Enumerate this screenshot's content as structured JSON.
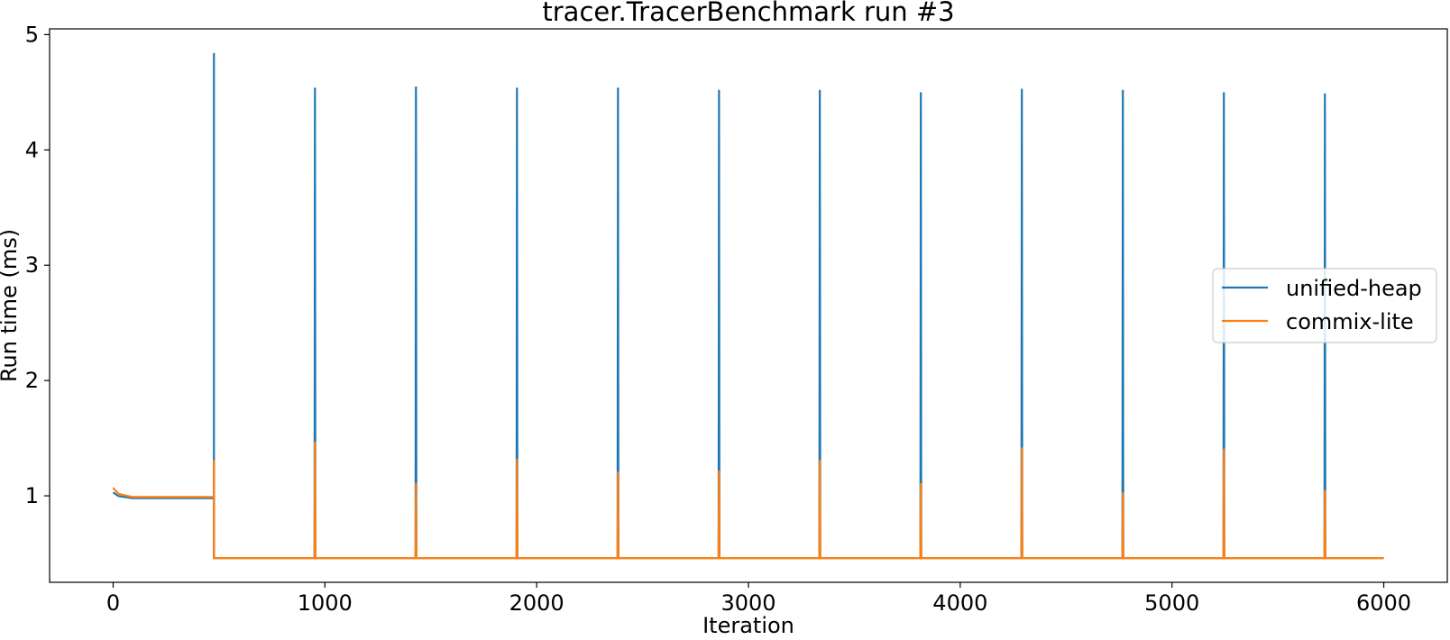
{
  "chart_data": {
    "type": "line",
    "title": "tracer.TracerBenchmark run #3",
    "xlabel": "Iteration",
    "ylabel": "Run time (ms)",
    "xlim": [
      -300,
      6300
    ],
    "ylim": [
      0.25,
      5.05
    ],
    "xticks": [
      0,
      1000,
      2000,
      3000,
      4000,
      5000,
      6000
    ],
    "xtick_labels": [
      "0",
      "1000",
      "2000",
      "3000",
      "4000",
      "5000",
      "6000"
    ],
    "yticks": [
      1,
      2,
      3,
      4,
      5
    ],
    "ytick_labels": [
      "1",
      "2",
      "3",
      "4",
      "5"
    ],
    "grid": false,
    "legend_position": "center-right",
    "series": [
      {
        "name": "unified-heap",
        "color": "#1f77b4",
        "baseline_segments": [
          {
            "x_start": 0,
            "x_end": 476,
            "start_value": 1.03,
            "value": 0.98
          },
          {
            "x_start": 476,
            "x_end": 6000,
            "value": 0.46
          }
        ],
        "spikes": [
          {
            "x": 476,
            "value": 4.84
          },
          {
            "x": 953,
            "value": 4.54
          },
          {
            "x": 1430,
            "value": 4.55
          },
          {
            "x": 1907,
            "value": 4.54
          },
          {
            "x": 2384,
            "value": 4.54
          },
          {
            "x": 2861,
            "value": 4.52
          },
          {
            "x": 3337,
            "value": 4.52
          },
          {
            "x": 3814,
            "value": 4.5
          },
          {
            "x": 4291,
            "value": 4.53
          },
          {
            "x": 4768,
            "value": 4.52
          },
          {
            "x": 5245,
            "value": 4.5
          },
          {
            "x": 5722,
            "value": 4.49
          }
        ]
      },
      {
        "name": "commix-lite",
        "color": "#ff7f0e",
        "baseline_segments": [
          {
            "x_start": 0,
            "x_end": 476,
            "start_value": 1.07,
            "value": 0.99
          },
          {
            "x_start": 476,
            "x_end": 6000,
            "value": 0.46
          }
        ],
        "spikes": [
          {
            "x": 476,
            "value": 1.31
          },
          {
            "x": 953,
            "value": 1.47
          },
          {
            "x": 1430,
            "value": 1.11
          },
          {
            "x": 1907,
            "value": 1.32
          },
          {
            "x": 2384,
            "value": 1.21
          },
          {
            "x": 2861,
            "value": 1.22
          },
          {
            "x": 3337,
            "value": 1.31
          },
          {
            "x": 3814,
            "value": 1.11
          },
          {
            "x": 4291,
            "value": 1.42
          },
          {
            "x": 4768,
            "value": 1.03
          },
          {
            "x": 5245,
            "value": 1.41
          },
          {
            "x": 5722,
            "value": 1.05
          }
        ]
      }
    ]
  }
}
